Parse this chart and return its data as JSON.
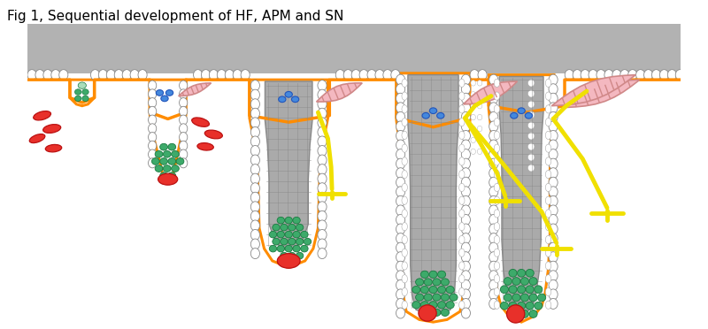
{
  "title": "Fig 1, Sequential development of HF, APM and SN",
  "title_fontsize": 11,
  "fig_width": 8.0,
  "fig_height": 3.72,
  "bg_color": "#ffffff",
  "skin_gray": "#b2b2b2",
  "orange": "#FF8C00",
  "white": "#ffffff",
  "green": "#3daa6a",
  "green_dark": "#1a7a40",
  "red": "#e8302a",
  "blue": "#4488dd",
  "yellow": "#f0e000",
  "pink": "#f4b8c0",
  "pink_dark": "#d08888",
  "gray_hair": "#aaaaaa",
  "gray_hair_dark": "#888888",
  "cell_border": "#888888",
  "lw_orange": 2.2
}
